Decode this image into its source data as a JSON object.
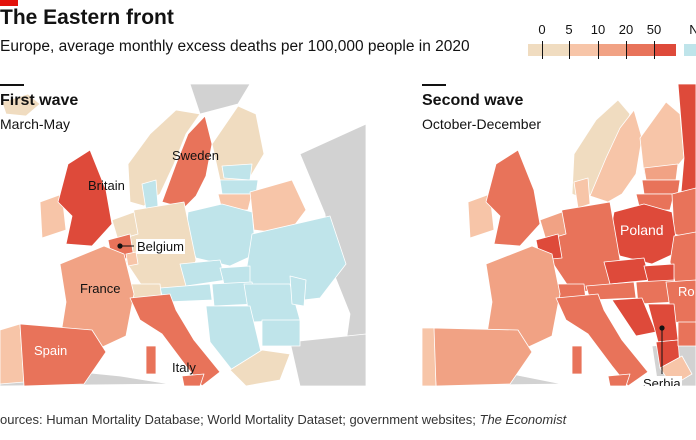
{
  "title": "The Eastern front",
  "subtitle": "Europe, average monthly excess deaths per 100,000 people in 2020",
  "legend": {
    "ticks": [
      "0",
      "5",
      "10",
      "20",
      "50"
    ],
    "no_data": "N",
    "colors": [
      "#f0dcc0",
      "#f7c5a8",
      "#f1a284",
      "#e8735a",
      "#de4a3a",
      "#bfe4ea"
    ]
  },
  "panels": {
    "first": {
      "title": "First wave",
      "period": "March-May",
      "labels": {
        "sweden": "Sweden",
        "britain": "Britain",
        "belgium": "Belgium",
        "france": "France",
        "spain": "Spain",
        "italy": "Italy"
      }
    },
    "second": {
      "title": "Second wave",
      "period": "October-December",
      "labels": {
        "poland": "Poland",
        "romania": "Ro",
        "serbia": "Serbia"
      }
    }
  },
  "source": {
    "prefix": "ources: Human Mortality Database; World Mortality Dataset; government websites; ",
    "italic": "The Economist"
  }
}
